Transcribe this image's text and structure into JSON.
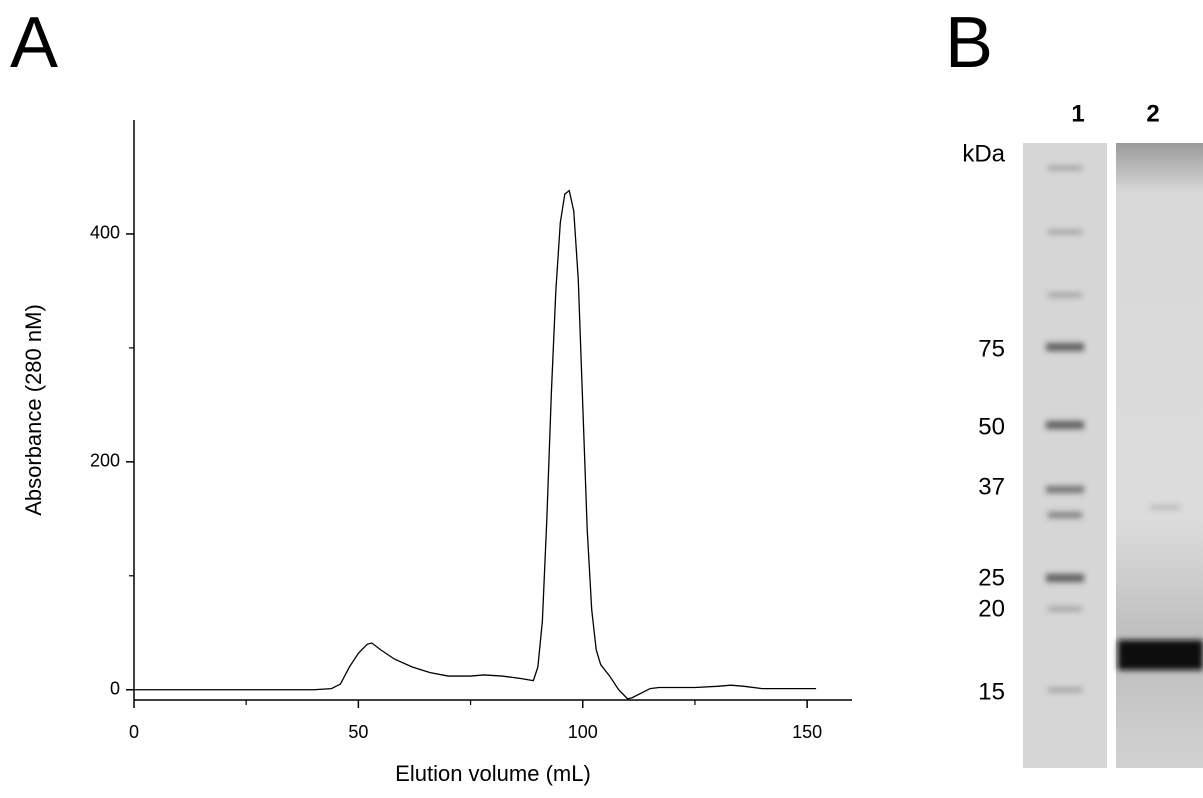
{
  "chart_data": {
    "type": "line",
    "panel_label": "A",
    "x_label": "Elution volume (mL)",
    "y_label": "Absorbance (280 nM)",
    "x": [
      0,
      20,
      40,
      44,
      46,
      48,
      50,
      52,
      53,
      55,
      58,
      62,
      66,
      70,
      75,
      78,
      82,
      86,
      89,
      90,
      91,
      92,
      93,
      94,
      95,
      96,
      97,
      98,
      99,
      100,
      101,
      102,
      103,
      104,
      106,
      108,
      110,
      111,
      113,
      115,
      117,
      120,
      125,
      130,
      133,
      136,
      140,
      145,
      152
    ],
    "series": [
      {
        "color": "#000000",
        "values": [
          0,
          0,
          0,
          1,
          5,
          20,
          32,
          40,
          41,
          35,
          27,
          20,
          15,
          12,
          12,
          13,
          12,
          10,
          8,
          20,
          60,
          150,
          260,
          350,
          410,
          435,
          438,
          420,
          360,
          250,
          140,
          70,
          35,
          22,
          12,
          0,
          -8,
          -7,
          -3,
          1,
          2,
          2,
          2,
          3,
          4,
          3,
          1,
          1,
          1
        ]
      }
    ],
    "xlim": [
      0,
      160
    ],
    "xticks": [
      0,
      50,
      100,
      150
    ],
    "xminorticks": [
      25,
      75,
      125
    ],
    "ylim": [
      -9,
      500
    ],
    "yticks": [
      0,
      200,
      400
    ],
    "yminorticks": [
      100,
      300
    ]
  },
  "gel": {
    "panel_label": "B",
    "lanes": [
      "1",
      "2"
    ],
    "unit": "kDa",
    "markers": [
      "75",
      "50",
      "37",
      "25",
      "20",
      "15"
    ]
  }
}
